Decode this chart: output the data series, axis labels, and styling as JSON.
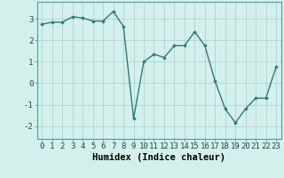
{
  "x": [
    0,
    1,
    2,
    3,
    4,
    5,
    6,
    7,
    8,
    9,
    10,
    11,
    12,
    13,
    14,
    15,
    16,
    17,
    18,
    19,
    20,
    21,
    22,
    23
  ],
  "y": [
    2.75,
    2.85,
    2.85,
    3.1,
    3.05,
    2.9,
    2.9,
    3.35,
    2.65,
    -1.65,
    1.0,
    1.35,
    1.2,
    1.75,
    1.75,
    2.4,
    1.75,
    0.1,
    -1.2,
    -1.85,
    -1.2,
    -0.7,
    -0.7,
    0.75
  ],
  "line_color": "#2d7d6e",
  "marker": "D",
  "marker_size": 1.8,
  "bg_color": "#d4f0ec",
  "grid_color": "#aed4ce",
  "xlabel": "Humidex (Indice chaleur)",
  "ylim": [
    -2.6,
    3.8
  ],
  "xlim": [
    -0.5,
    23.5
  ],
  "yticks": [
    -2,
    -1,
    0,
    1,
    2,
    3
  ],
  "xticks": [
    0,
    1,
    2,
    3,
    4,
    5,
    6,
    7,
    8,
    9,
    10,
    11,
    12,
    13,
    14,
    15,
    16,
    17,
    18,
    19,
    20,
    21,
    22,
    23
  ],
  "xlabel_fontsize": 7.5,
  "tick_fontsize": 6.5,
  "linewidth": 1.0
}
